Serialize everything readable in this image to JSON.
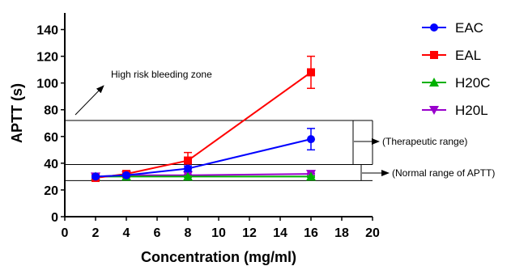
{
  "chart_data": {
    "type": "line",
    "title": "",
    "xlabel": "Concentration (mg/ml)",
    "ylabel": "APTT (s)",
    "xlim": [
      0,
      20
    ],
    "ylim": [
      0,
      150
    ],
    "x_ticks": [
      0,
      2,
      4,
      6,
      8,
      10,
      12,
      14,
      16,
      18,
      20
    ],
    "y_ticks": [
      0,
      20,
      40,
      60,
      80,
      100,
      120,
      140
    ],
    "grid": false,
    "legend_position": "top-right",
    "series": [
      {
        "name": "EAC",
        "color": "#0000ff",
        "marker": "circle",
        "x": [
          2,
          4,
          8,
          16
        ],
        "y": [
          30,
          31,
          36,
          58
        ],
        "error": [
          1,
          1,
          2,
          8
        ]
      },
      {
        "name": "EAL",
        "color": "#ff0000",
        "marker": "square",
        "x": [
          2,
          4,
          8,
          16
        ],
        "y": [
          29,
          32,
          42,
          108
        ],
        "error": [
          1,
          1,
          6,
          12
        ]
      },
      {
        "name": "H20C",
        "color": "#00b000",
        "marker": "triangle-up",
        "x": [
          2,
          4,
          8,
          16
        ],
        "y": [
          30,
          30,
          30,
          30
        ],
        "error": [
          0.5,
          0.5,
          0.5,
          0.5
        ]
      },
      {
        "name": "H20L",
        "color": "#9900cc",
        "marker": "triangle-down",
        "x": [
          2,
          4,
          8,
          16
        ],
        "y": [
          30,
          31,
          31,
          32
        ],
        "error": [
          0.5,
          0.5,
          0.5,
          0.5
        ]
      }
    ],
    "reference_lines": [
      72,
      39,
      27
    ],
    "annotations": {
      "high_risk": "High risk bleeding zone",
      "therapeutic": "(Therapeutic range)",
      "normal": "(Normal range of APTT)"
    }
  }
}
